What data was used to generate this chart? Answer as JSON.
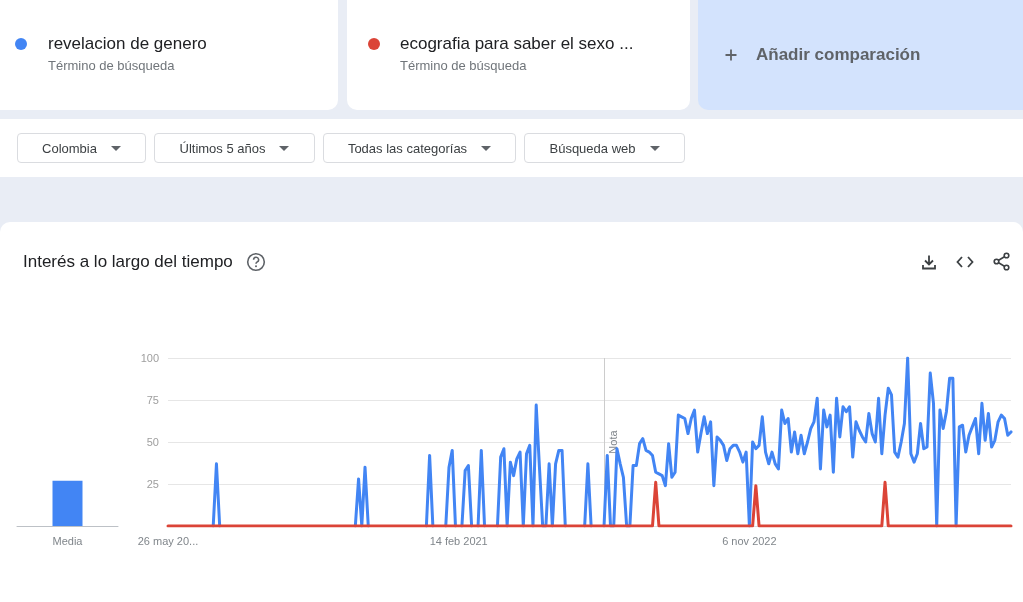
{
  "chart_data": [
    {
      "type": "line",
      "title": "Interés a lo largo del tiempo",
      "x": [
        "2019-05-26",
        "2019-06-02",
        "2019-06-09",
        "2019-06-16",
        "2019-06-23",
        "2019-06-30",
        "2019-07-07",
        "2019-07-14",
        "2019-07-21",
        "2019-07-28",
        "2019-08-04",
        "2019-08-11",
        "2019-08-18",
        "2019-08-25",
        "2019-09-01",
        "2019-09-08",
        "2019-09-15",
        "2019-09-22",
        "2019-09-29",
        "2019-10-06",
        "2019-10-13",
        "2019-10-20",
        "2019-10-27",
        "2019-11-03",
        "2019-11-10",
        "2019-11-17",
        "2019-11-24",
        "2019-12-01",
        "2019-12-08",
        "2019-12-15",
        "2019-12-22",
        "2019-12-29",
        "2020-01-05",
        "2020-01-12",
        "2020-01-19",
        "2020-01-26",
        "2020-02-02",
        "2020-02-09",
        "2020-02-16",
        "2020-02-23",
        "2020-03-01",
        "2020-03-08",
        "2020-03-15",
        "2020-03-22",
        "2020-03-29",
        "2020-04-05",
        "2020-04-12",
        "2020-04-19",
        "2020-04-26",
        "2020-05-03",
        "2020-05-10",
        "2020-05-17",
        "2020-05-24",
        "2020-05-31",
        "2020-06-07",
        "2020-06-14",
        "2020-06-21",
        "2020-06-28",
        "2020-07-05",
        "2020-07-12",
        "2020-07-19",
        "2020-07-26",
        "2020-08-02",
        "2020-08-09",
        "2020-08-16",
        "2020-08-23",
        "2020-08-30",
        "2020-09-06",
        "2020-09-13",
        "2020-09-20",
        "2020-09-27",
        "2020-10-04",
        "2020-10-11",
        "2020-10-18",
        "2020-10-25",
        "2020-11-01",
        "2020-11-08",
        "2020-11-15",
        "2020-11-22",
        "2020-11-29",
        "2020-12-06",
        "2020-12-13",
        "2020-12-20",
        "2020-12-27",
        "2021-01-03",
        "2021-01-10",
        "2021-01-17",
        "2021-01-24",
        "2021-01-31",
        "2021-02-07",
        "2021-02-14",
        "2021-02-21",
        "2021-02-28",
        "2021-03-07",
        "2021-03-14",
        "2021-03-21",
        "2021-03-28",
        "2021-04-04",
        "2021-04-11",
        "2021-04-18",
        "2021-04-25",
        "2021-05-02",
        "2021-05-09",
        "2021-05-16",
        "2021-05-23",
        "2021-05-30",
        "2021-06-06",
        "2021-06-13",
        "2021-06-20",
        "2021-06-27",
        "2021-07-04",
        "2021-07-11",
        "2021-07-18",
        "2021-07-25",
        "2021-08-01",
        "2021-08-08",
        "2021-08-15",
        "2021-08-22",
        "2021-08-29",
        "2021-09-05",
        "2021-09-12",
        "2021-09-19",
        "2021-09-26",
        "2021-10-03",
        "2021-10-10",
        "2021-10-17",
        "2021-10-24",
        "2021-10-31",
        "2021-11-07",
        "2021-11-14",
        "2021-11-21",
        "2021-11-28",
        "2021-12-05",
        "2021-12-12",
        "2021-12-19",
        "2021-12-26",
        "2022-01-02",
        "2022-01-09",
        "2022-01-16",
        "2022-01-23",
        "2022-01-30",
        "2022-02-06",
        "2022-02-13",
        "2022-02-20",
        "2022-02-27",
        "2022-03-06",
        "2022-03-13",
        "2022-03-20",
        "2022-03-27",
        "2022-04-03",
        "2022-04-10",
        "2022-04-17",
        "2022-04-24",
        "2022-05-01",
        "2022-05-08",
        "2022-05-15",
        "2022-05-22",
        "2022-05-29",
        "2022-06-05",
        "2022-06-12",
        "2022-06-19",
        "2022-06-26",
        "2022-07-03",
        "2022-07-10",
        "2022-07-17",
        "2022-07-24",
        "2022-07-31",
        "2022-08-07",
        "2022-08-14",
        "2022-08-21",
        "2022-08-28",
        "2022-09-04",
        "2022-09-11",
        "2022-09-18",
        "2022-09-25",
        "2022-10-02",
        "2022-10-09",
        "2022-10-16",
        "2022-10-23",
        "2022-10-30",
        "2022-11-06",
        "2022-11-13",
        "2022-11-20",
        "2022-11-27",
        "2022-12-04",
        "2022-12-11",
        "2022-12-18",
        "2022-12-25",
        "2023-01-01",
        "2023-01-08",
        "2023-01-15",
        "2023-01-22",
        "2023-01-29",
        "2023-02-05",
        "2023-02-12",
        "2023-02-19",
        "2023-02-26",
        "2023-03-05",
        "2023-03-12",
        "2023-03-19",
        "2023-03-26",
        "2023-04-02",
        "2023-04-09",
        "2023-04-16",
        "2023-04-23",
        "2023-04-30",
        "2023-05-07",
        "2023-05-14",
        "2023-05-21",
        "2023-05-28",
        "2023-06-04",
        "2023-06-11",
        "2023-06-18",
        "2023-06-25",
        "2023-07-02",
        "2023-07-09",
        "2023-07-16",
        "2023-07-23",
        "2023-07-30",
        "2023-08-06",
        "2023-08-13",
        "2023-08-20",
        "2023-08-27",
        "2023-09-03",
        "2023-09-10",
        "2023-09-17",
        "2023-09-24",
        "2023-10-01",
        "2023-10-08",
        "2023-10-15",
        "2023-10-22",
        "2023-10-29",
        "2023-11-05",
        "2023-11-12",
        "2023-11-19",
        "2023-11-26",
        "2023-12-03",
        "2023-12-10",
        "2023-12-17",
        "2023-12-24",
        "2023-12-31",
        "2024-01-07",
        "2024-01-14",
        "2024-01-21",
        "2024-01-28",
        "2024-02-04",
        "2024-02-11",
        "2024-02-18",
        "2024-02-25",
        "2024-03-03",
        "2024-03-10",
        "2024-03-17",
        "2024-03-24",
        "2024-03-31",
        "2024-04-07",
        "2024-04-14",
        "2024-04-21",
        "2024-04-28",
        "2024-05-05",
        "2024-05-12",
        "2024-05-19",
        "2024-05-26"
      ],
      "series": [
        {
          "name": "revelacion de genero",
          "color": "#4285f4",
          "values": [
            null,
            null,
            null,
            null,
            null,
            null,
            null,
            null,
            null,
            null,
            null,
            null,
            null,
            null,
            0,
            37,
            0,
            null,
            null,
            null,
            null,
            null,
            null,
            null,
            null,
            null,
            null,
            null,
            null,
            null,
            null,
            null,
            null,
            null,
            null,
            null,
            null,
            null,
            null,
            null,
            null,
            null,
            null,
            null,
            null,
            null,
            null,
            null,
            null,
            null,
            null,
            null,
            null,
            null,
            null,
            null,
            null,
            null,
            0,
            28,
            0,
            35,
            0,
            null,
            null,
            null,
            null,
            null,
            null,
            null,
            null,
            null,
            null,
            null,
            null,
            null,
            null,
            null,
            null,
            null,
            0,
            42,
            0,
            null,
            null,
            null,
            0,
            35,
            45,
            0,
            null,
            0,
            33,
            36,
            0,
            null,
            0,
            45,
            0,
            null,
            null,
            null,
            0,
            41,
            46,
            0,
            38,
            30,
            40,
            44,
            0,
            43,
            48,
            0,
            72,
            35,
            0,
            0,
            37,
            0,
            37,
            45,
            45,
            0,
            null,
            null,
            null,
            null,
            null,
            0,
            37,
            0,
            null,
            null,
            null,
            0,
            42,
            0,
            0,
            46,
            37,
            29,
            0,
            0,
            36,
            36,
            49,
            52,
            45,
            44,
            42,
            32,
            31,
            30,
            24,
            49,
            29,
            32,
            66,
            65,
            64,
            55,
            64,
            69,
            44,
            55,
            65,
            55,
            62,
            24,
            53,
            51,
            48,
            39,
            46,
            48,
            48,
            44,
            38,
            44,
            0,
            50,
            46,
            48,
            65,
            44,
            37,
            44,
            37,
            34,
            69,
            61,
            64,
            44,
            56,
            43,
            54,
            43,
            50,
            58,
            62,
            76,
            34,
            69,
            59,
            66,
            32,
            76,
            53,
            71,
            68,
            71,
            41,
            62,
            57,
            53,
            50,
            67,
            55,
            50,
            76,
            43,
            66,
            82,
            78,
            44,
            41,
            50,
            61,
            100,
            43,
            38,
            43,
            61,
            46,
            47,
            91,
            73,
            0,
            69,
            58,
            68,
            88,
            88,
            0,
            59,
            60,
            44,
            54,
            59,
            64,
            43,
            73,
            51,
            67,
            47,
            51,
            62,
            66,
            64,
            54,
            56
          ]
        },
        {
          "name": "ecografia para saber el sexo ...",
          "color": "#db4437",
          "values": [
            0,
            0,
            0,
            0,
            0,
            0,
            0,
            0,
            0,
            0,
            0,
            0,
            0,
            0,
            0,
            0,
            0,
            0,
            0,
            0,
            0,
            0,
            0,
            0,
            0,
            0,
            0,
            0,
            0,
            0,
            0,
            0,
            0,
            0,
            0,
            0,
            0,
            0,
            0,
            0,
            0,
            0,
            0,
            0,
            0,
            0,
            0,
            0,
            0,
            0,
            0,
            0,
            0,
            0,
            0,
            0,
            0,
            0,
            0,
            0,
            0,
            0,
            0,
            0,
            0,
            0,
            0,
            0,
            0,
            0,
            0,
            0,
            0,
            0,
            0,
            0,
            0,
            0,
            0,
            0,
            0,
            0,
            0,
            0,
            0,
            0,
            0,
            0,
            0,
            0,
            0,
            0,
            0,
            0,
            0,
            0,
            0,
            0,
            0,
            0,
            0,
            0,
            0,
            0,
            0,
            0,
            0,
            0,
            0,
            0,
            0,
            0,
            0,
            0,
            0,
            0,
            0,
            0,
            0,
            0,
            0,
            0,
            0,
            0,
            0,
            0,
            0,
            0,
            0,
            0,
            0,
            0,
            0,
            0,
            0,
            0,
            0,
            0,
            0,
            0,
            0,
            0,
            0,
            0,
            0,
            0,
            0,
            0,
            0,
            0,
            0,
            26,
            0,
            0,
            0,
            0,
            0,
            0,
            0,
            0,
            0,
            0,
            0,
            0,
            0,
            0,
            0,
            0,
            0,
            0,
            0,
            0,
            0,
            0,
            0,
            0,
            0,
            0,
            0,
            0,
            0,
            0,
            24,
            0,
            0,
            0,
            0,
            0,
            0,
            0,
            0,
            0,
            0,
            0,
            0,
            0,
            0,
            0,
            0,
            0,
            0,
            0,
            0,
            0,
            0,
            0,
            0,
            0,
            0,
            0,
            0,
            0,
            0,
            0,
            0,
            0,
            0,
            0,
            0,
            0,
            0,
            0,
            26,
            0,
            0,
            0,
            0,
            0,
            0,
            0,
            0,
            0,
            0,
            0,
            0,
            0,
            0,
            0,
            0,
            0,
            0,
            0,
            0,
            0,
            0,
            0,
            0,
            0,
            0,
            0,
            0,
            0,
            0,
            0,
            0,
            0,
            0,
            0,
            0,
            0,
            0,
            0
          ]
        }
      ],
      "xlim": [
        "2019-05-26",
        "2024-05-26"
      ],
      "xticks": [
        {
          "value": "2019-05-26",
          "label": "26 may 20..."
        },
        {
          "value": "2021-02-14",
          "label": "14 feb 2021"
        },
        {
          "value": "2022-11-06",
          "label": "6 nov 2022"
        }
      ],
      "ylim": [
        0,
        100
      ],
      "yticks": [
        25,
        50,
        75,
        100
      ],
      "grid": "y",
      "legend": "top",
      "marker": "none",
      "line_style": "solid",
      "ref_lines": [
        {
          "axis": "x",
          "value": "2021-12-26",
          "label": "Nota",
          "color": "#cccccc"
        }
      ],
      "annotations": [
        "Término de búsqueda",
        "Término de búsqueda",
        "Añadir comparación",
        "Colombia",
        "Últimos 5 años",
        "Todas las categorías",
        "Búsqueda web"
      ]
    },
    {
      "type": "bar",
      "categories": [
        "Media"
      ],
      "values": [
        27
      ],
      "color": "#4285f4",
      "ylim": [
        0,
        100
      ],
      "tick_labels": "x"
    }
  ]
}
